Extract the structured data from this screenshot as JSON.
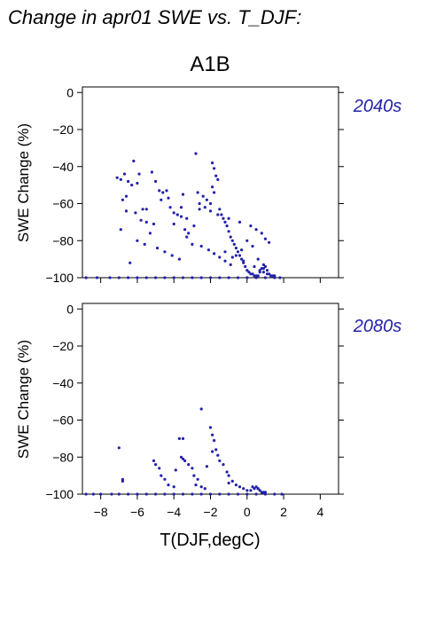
{
  "page_title": "Change in apr01 SWE vs. T_DJF:",
  "scenario": "A1B",
  "xlabel": "T(DJF,degC)",
  "accent_color": "#2222aa",
  "chart_data": [
    {
      "type": "scatter",
      "period_label": "2040s",
      "ylabel": "SWE Change (%)",
      "xlim": [
        -9,
        5
      ],
      "ylim": [
        -100,
        3
      ],
      "xticks": [
        -8,
        -6,
        -4,
        -2,
        0,
        2,
        4
      ],
      "xtick_labels": [
        "−8",
        "−6",
        "−4",
        "−2",
        "0",
        "2",
        "4"
      ],
      "yticks": [
        0,
        -20,
        -40,
        -60,
        -80,
        -100
      ],
      "ytick_labels": [
        "0",
        "−20",
        "−40",
        "−60",
        "−80",
        "−100"
      ],
      "grid": false,
      "series": [
        {
          "color": "#2222aa",
          "x": [
            -6.2,
            -6.5,
            -6.7,
            -6.9,
            -7.1,
            -6.8,
            -6.6,
            -6.3,
            -6.0,
            -5.9,
            -5.7,
            -5.5,
            -5.2,
            -5.0,
            -4.8,
            -4.6,
            -4.4,
            -4.2,
            -4.0,
            -3.8,
            -3.6,
            -3.4,
            -3.2,
            -3.0,
            -2.8,
            -2.6,
            -2.4,
            -2.2,
            -2.0,
            -1.9,
            -1.8,
            -1.7,
            -1.6,
            -1.5,
            -1.4,
            -1.3,
            -1.2,
            -1.1,
            -1.0,
            -0.9,
            -0.8,
            -0.7,
            -0.6,
            -0.5,
            -0.4,
            -0.3,
            -0.2,
            -0.1,
            0.0,
            0.1,
            0.2,
            0.3,
            0.4,
            0.5,
            0.6,
            0.7,
            0.8,
            0.9,
            1.0,
            1.1,
            1.2,
            1.3,
            1.5,
            -6.9,
            -6.4,
            -6.0,
            -5.6,
            -5.3,
            -4.9,
            -4.5,
            -4.1,
            -3.7,
            -3.3,
            -2.9,
            -2.5,
            -2.1,
            -1.8,
            -1.5,
            -1.2,
            -0.9,
            -0.6,
            -0.3,
            0.0,
            0.3,
            0.6,
            0.9,
            -5.8,
            -5.1,
            -4.3,
            -3.5,
            -2.7,
            -2.3,
            -1.6,
            -1.0,
            -0.4,
            0.2,
            0.5,
            0.8,
            1.0,
            1.2,
            -2.6,
            -1.9,
            -1.8,
            -3.6,
            -4.0,
            -3.3,
            -5.5,
            -6.1,
            -6.6,
            -4.7,
            -2.0,
            -1.2,
            -0.8,
            -0.2,
            0.4,
            0.7,
            0.9,
            1.1,
            1.4,
            -8.8,
            -8.2,
            -7.5,
            -7.0,
            -6.5,
            -6.0,
            -5.5,
            -5.0,
            -4.5,
            -4.0,
            -3.5,
            -3.0,
            -2.5,
            -2.0,
            -1.5,
            -1.0,
            -0.5,
            0.0,
            0.5,
            1.0,
            1.5,
            1.8
          ],
          "y": [
            -37,
            -48,
            -44,
            -47,
            -46,
            -58,
            -64,
            -50,
            -49,
            -44,
            -63,
            -63,
            -43,
            -48,
            -53,
            -54,
            -53,
            -62,
            -65,
            -66,
            -67,
            -74,
            -76,
            -82,
            -33,
            -63,
            -56,
            -58,
            -60,
            -38,
            -41,
            -45,
            -47,
            -63,
            -66,
            -68,
            -70,
            -72,
            -75,
            -78,
            -80,
            -82,
            -84,
            -86,
            -88,
            -90,
            -92,
            -94,
            -96,
            -97,
            -98,
            -98,
            -99,
            -99,
            -99,
            -97,
            -95,
            -93,
            -94,
            -96,
            -98,
            -99,
            -99,
            -74,
            -92,
            -80,
            -82,
            -76,
            -84,
            -86,
            -88,
            -90,
            -78,
            -72,
            -83,
            -85,
            -87,
            -89,
            -91,
            -93,
            -88,
            -85,
            -80,
            -83,
            -90,
            -95,
            -69,
            -71,
            -57,
            -55,
            -54,
            -62,
            -66,
            -68,
            -70,
            -72,
            -74,
            -76,
            -79,
            -81,
            -60,
            -51,
            -54,
            -62,
            -71,
            -68,
            -70,
            -65,
            -56,
            -58,
            -64,
            -86,
            -89,
            -91,
            -94,
            -96,
            -97,
            -98,
            -99,
            -100,
            -100,
            -100,
            -100,
            -100,
            -100,
            -100,
            -100,
            -100,
            -100,
            -100,
            -100,
            -100,
            -100,
            -100,
            -100,
            -100,
            -100,
            -100,
            -100,
            -100,
            -100
          ]
        }
      ]
    },
    {
      "type": "scatter",
      "period_label": "2080s",
      "ylabel": "SWE Change (%)",
      "xlim": [
        -9,
        5
      ],
      "ylim": [
        -100,
        3
      ],
      "xticks": [
        -8,
        -6,
        -4,
        -2,
        0,
        2,
        4
      ],
      "xtick_labels": [
        "−8",
        "−6",
        "−4",
        "−2",
        "0",
        "2",
        "4"
      ],
      "yticks": [
        0,
        -20,
        -40,
        -60,
        -80,
        -100
      ],
      "ytick_labels": [
        "0",
        "−20",
        "−40",
        "−60",
        "−80",
        "−100"
      ],
      "grid": false,
      "series": [
        {
          "color": "#2222aa",
          "x": [
            -7.0,
            -6.8,
            -6.8,
            -5.1,
            -5.0,
            -4.8,
            -4.7,
            -4.5,
            -4.3,
            -3.9,
            -3.7,
            -3.6,
            -3.5,
            -3.4,
            -3.2,
            -3.0,
            -2.9,
            -2.7,
            -2.5,
            -2.3,
            -2.2,
            -2.0,
            -1.9,
            -1.8,
            -1.7,
            -1.6,
            -1.5,
            -1.3,
            -1.1,
            -1.0,
            -0.8,
            -0.6,
            -0.4,
            -0.2,
            0.0,
            0.2,
            0.4,
            0.5,
            0.6,
            0.7,
            0.8,
            0.9,
            1.0,
            -2.5,
            -1.9,
            -3.5,
            -4.0,
            -2.8,
            -1.0,
            0.3,
            0.6,
            -8.8,
            -8.4,
            -8.0,
            -7.4,
            -7.0,
            -6.5,
            -6.0,
            -5.5,
            -5.0,
            -4.5,
            -4.0,
            -3.5,
            -3.0,
            -2.5,
            -2.0,
            -1.5,
            -1.0,
            -0.5,
            0.0,
            0.5,
            1.0,
            1.5,
            1.9
          ],
          "y": [
            -75,
            -92,
            -93,
            -82,
            -84,
            -86,
            -90,
            -92,
            -95,
            -87,
            -70,
            -80,
            -81,
            -82,
            -84,
            -86,
            -90,
            -92,
            -96,
            -97,
            -85,
            -64,
            -68,
            -71,
            -76,
            -79,
            -82,
            -84,
            -88,
            -90,
            -93,
            -95,
            -96,
            -97,
            -98,
            -98,
            -97,
            -96,
            -97,
            -98,
            -99,
            -99,
            -99,
            -54,
            -77,
            -70,
            -96,
            -95,
            -94,
            -96,
            -97,
            -100,
            -100,
            -100,
            -100,
            -100,
            -100,
            -100,
            -100,
            -100,
            -100,
            -100,
            -100,
            -100,
            -100,
            -100,
            -100,
            -100,
            -100,
            -100,
            -100,
            -100,
            -100,
            -100
          ]
        }
      ]
    }
  ]
}
